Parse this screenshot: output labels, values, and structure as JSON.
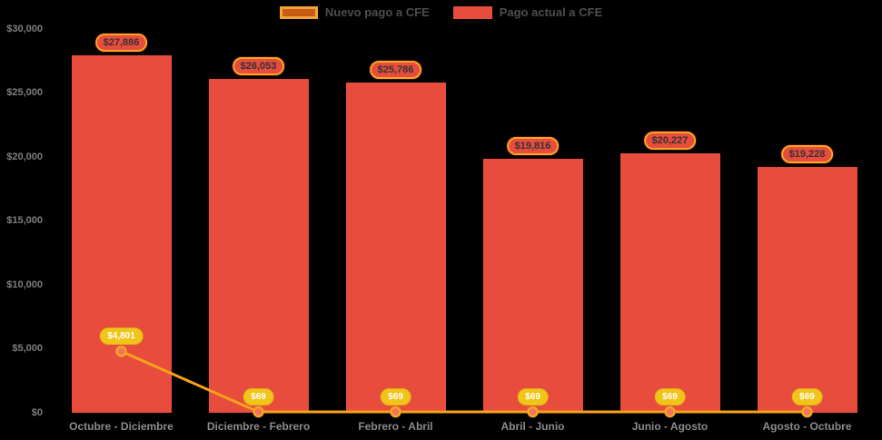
{
  "chart_data": {
    "type": "bar",
    "subtype": "bar-with-line-overlay",
    "title": "",
    "xlabel": "",
    "ylabel": "",
    "categories": [
      "Octubre - Diciembre",
      "Diciembre - Febrero",
      "Febrero - Abril",
      "Abril - Junio",
      "Junio - Agosto",
      "Agosto - Octubre"
    ],
    "series": [
      {
        "name": "Nuevo pago a CFE",
        "type": "line",
        "color": "#f6a21c",
        "marker_fill": "#f4735e",
        "marker_stroke": "#f5a623",
        "values": [
          4801,
          69,
          69,
          69,
          69,
          69
        ],
        "labels": [
          "$4,801",
          "$69",
          "$69",
          "$69",
          "$69",
          "$69"
        ]
      },
      {
        "name": "Pago actual a CFE",
        "type": "bar",
        "color": "#e74c3c",
        "values": [
          27886,
          26053,
          25786,
          19816,
          20227,
          19228
        ],
        "labels": [
          "$27,886",
          "$26,053",
          "$25,786",
          "$19,816",
          "$20,227",
          "$19,228"
        ]
      }
    ],
    "ylim": [
      0,
      30000
    ],
    "y_ticks": [
      {
        "value": 0,
        "label": "$0"
      },
      {
        "value": 5000,
        "label": "$5,000"
      },
      {
        "value": 10000,
        "label": "$10,000"
      },
      {
        "value": 15000,
        "label": "$15,000"
      },
      {
        "value": 20000,
        "label": "$20,000"
      },
      {
        "value": 25000,
        "label": "$25,000"
      },
      {
        "value": 30000,
        "label": "$30,000"
      }
    ],
    "grid": false,
    "legend_position": "top",
    "background_color": "#000000"
  }
}
